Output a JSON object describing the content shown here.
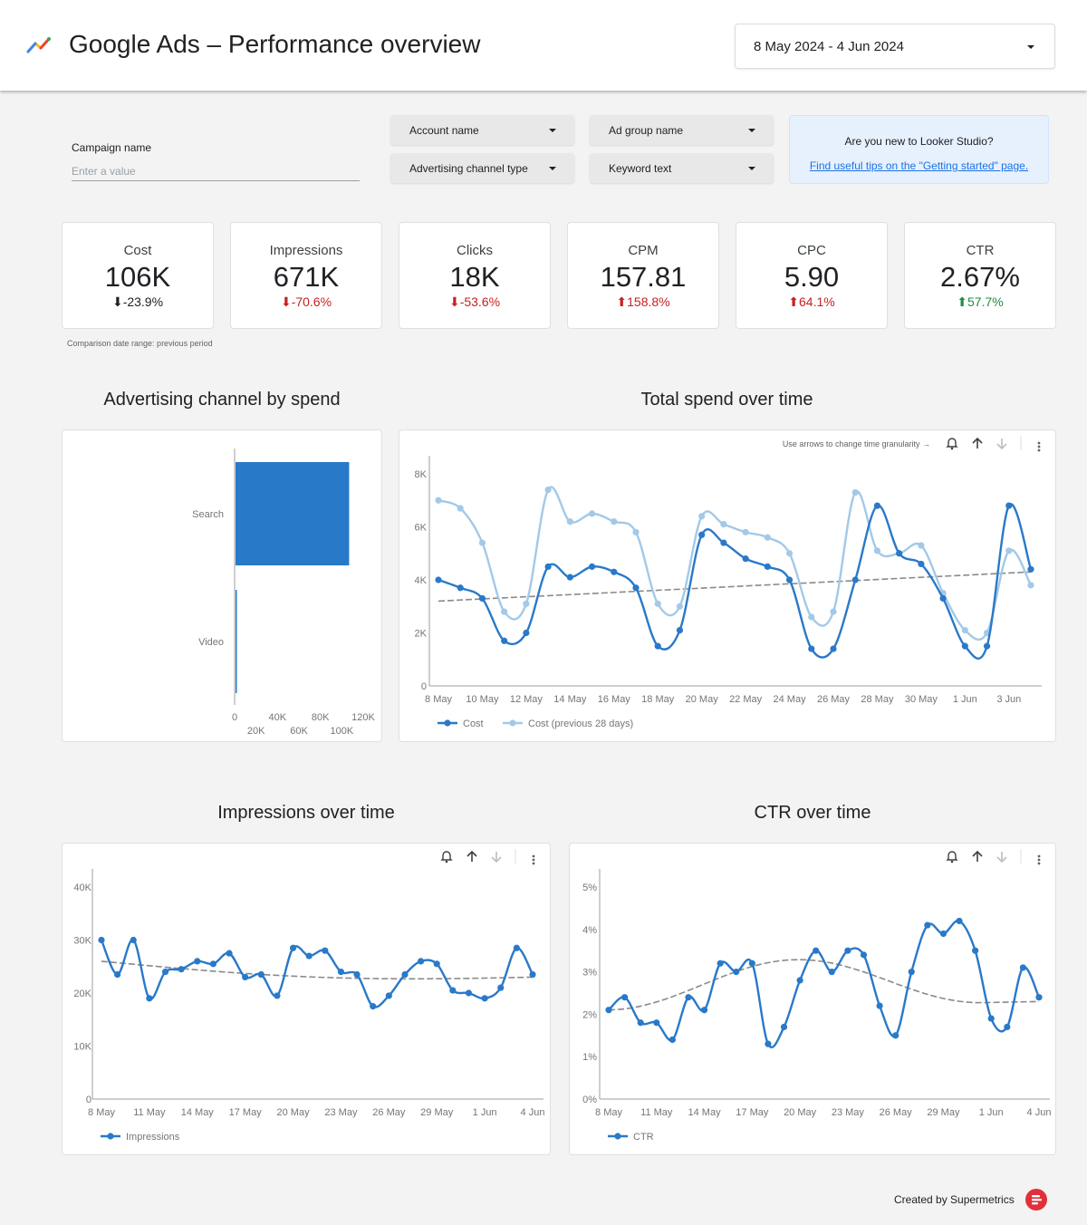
{
  "header": {
    "title": "Google Ads – Performance overview",
    "date_range": "8 May 2024 - 4 Jun 2024",
    "logo_icon": "google-ads-icon"
  },
  "filters": {
    "campaign_label": "Campaign name",
    "campaign_placeholder": "Enter a value",
    "account": "Account name",
    "ad_group": "Ad group name",
    "channel_type": "Advertising channel type",
    "keyword": "Keyword text"
  },
  "tip": {
    "question": "Are you new to Looker Studio?",
    "link": "Find useful tips on the \"Getting started\" page."
  },
  "colors": {
    "primary": "#2979c9",
    "secondary": "#a3c9e8",
    "trend": "#8a8a8a",
    "down": "#c5221f",
    "up": "#1e8e3e"
  },
  "kpis": [
    {
      "label": "Cost",
      "value": "106K",
      "change": "-23.9%",
      "direction": "down",
      "tone": "neutral"
    },
    {
      "label": "Impressions",
      "value": "671K",
      "change": "-70.6%",
      "direction": "down",
      "tone": "red"
    },
    {
      "label": "Clicks",
      "value": "18K",
      "change": "-53.6%",
      "direction": "down",
      "tone": "red"
    },
    {
      "label": "CPM",
      "value": "157.81",
      "change": "158.8%",
      "direction": "up",
      "tone": "red"
    },
    {
      "label": "CPC",
      "value": "5.90",
      "change": "64.1%",
      "direction": "up",
      "tone": "red"
    },
    {
      "label": "CTR",
      "value": "2.67%",
      "change": "57.7%",
      "direction": "up",
      "tone": "green"
    }
  ],
  "comparison_note": "Comparison date range: previous period",
  "chart_controls": {
    "granularity_hint": "Use arrows to change time granularity →",
    "icons": [
      "bell-icon",
      "arrow-up-icon",
      "arrow-down-icon",
      "more-vert-icon"
    ]
  },
  "chart_data": [
    {
      "type": "bar",
      "orientation": "horizontal",
      "title": "Advertising channel by spend",
      "categories": [
        "Search",
        "Video"
      ],
      "values": [
        106000,
        1000
      ],
      "xlim": [
        0,
        120000
      ],
      "ticks_row1": [
        "0",
        "40K",
        "80K",
        "120K"
      ],
      "ticks_row2": [
        "20K",
        "60K",
        "100K"
      ]
    },
    {
      "type": "line",
      "title": "Total spend over time",
      "x": [
        "8 May",
        "9 May",
        "10 May",
        "11 May",
        "12 May",
        "13 May",
        "14 May",
        "15 May",
        "16 May",
        "17 May",
        "18 May",
        "19 May",
        "20 May",
        "21 May",
        "22 May",
        "23 May",
        "24 May",
        "25 May",
        "26 May",
        "27 May",
        "28 May",
        "29 May",
        "30 May",
        "31 May",
        "1 Jun",
        "2 Jun",
        "3 Jun",
        "4 Jun"
      ],
      "x_tick_labels": [
        "8 May",
        "10 May",
        "12 May",
        "14 May",
        "16 May",
        "18 May",
        "20 May",
        "22 May",
        "24 May",
        "26 May",
        "28 May",
        "30 May",
        "1 Jun",
        "3 Jun"
      ],
      "ylim": [
        0,
        8000
      ],
      "y_ticks": [
        0,
        2000,
        4000,
        6000,
        8000
      ],
      "y_tick_labels": [
        "0",
        "2K",
        "4K",
        "6K",
        "8K"
      ],
      "trend": [
        3200,
        4300
      ],
      "series": [
        {
          "name": "Cost",
          "values": [
            4000,
            3700,
            3300,
            1700,
            2000,
            4500,
            4100,
            4500,
            4300,
            3700,
            1500,
            2100,
            5700,
            5400,
            4800,
            4500,
            4000,
            1400,
            1400,
            4000,
            6800,
            5000,
            4600,
            3300,
            1500,
            1500,
            6800,
            4400
          ]
        },
        {
          "name": "Cost (previous 28 days)",
          "values": [
            7000,
            6700,
            5400,
            2800,
            3100,
            7400,
            6200,
            6500,
            6200,
            5800,
            3100,
            3000,
            6400,
            6100,
            5800,
            5600,
            5000,
            2600,
            2800,
            7300,
            5100,
            5000,
            5300,
            3500,
            2100,
            2000,
            5100,
            3800
          ]
        }
      ]
    },
    {
      "type": "line",
      "title": "Impressions over time",
      "x": [
        "8 May",
        "9 May",
        "10 May",
        "11 May",
        "12 May",
        "13 May",
        "14 May",
        "15 May",
        "16 May",
        "17 May",
        "18 May",
        "19 May",
        "20 May",
        "21 May",
        "22 May",
        "23 May",
        "24 May",
        "25 May",
        "26 May",
        "27 May",
        "28 May",
        "29 May",
        "30 May",
        "31 May",
        "1 Jun",
        "2 Jun",
        "3 Jun",
        "4 Jun"
      ],
      "x_tick_labels": [
        "8 May",
        "11 May",
        "14 May",
        "17 May",
        "20 May",
        "23 May",
        "26 May",
        "29 May",
        "1 Jun",
        "4 Jun"
      ],
      "ylim": [
        0,
        40000
      ],
      "y_ticks": [
        0,
        10000,
        20000,
        30000,
        40000
      ],
      "y_tick_labels": [
        "0",
        "10K",
        "20K",
        "30K",
        "40K"
      ],
      "trend": [
        26000,
        23000
      ],
      "series": [
        {
          "name": "Impressions",
          "values": [
            30000,
            23500,
            30000,
            19000,
            24000,
            24500,
            26000,
            25500,
            27500,
            23000,
            23500,
            19500,
            28500,
            27000,
            28000,
            24000,
            23500,
            17500,
            19500,
            23500,
            26000,
            25500,
            20500,
            20000,
            19000,
            21000,
            28500,
            23500
          ]
        }
      ]
    },
    {
      "type": "line",
      "title": "CTR over time",
      "x": [
        "8 May",
        "9 May",
        "10 May",
        "11 May",
        "12 May",
        "13 May",
        "14 May",
        "15 May",
        "16 May",
        "17 May",
        "18 May",
        "19 May",
        "20 May",
        "21 May",
        "22 May",
        "23 May",
        "24 May",
        "25 May",
        "26 May",
        "27 May",
        "28 May",
        "29 May",
        "30 May",
        "31 May",
        "1 Jun",
        "2 Jun",
        "3 Jun",
        "4 Jun"
      ],
      "x_tick_labels": [
        "8 May",
        "11 May",
        "14 May",
        "17 May",
        "20 May",
        "23 May",
        "26 May",
        "29 May",
        "1 Jun",
        "4 Jun"
      ],
      "ylim": [
        0,
        5
      ],
      "y_ticks": [
        0,
        1,
        2,
        3,
        4,
        5
      ],
      "y_tick_labels": [
        "0%",
        "1%",
        "2%",
        "3%",
        "4%",
        "5%"
      ],
      "trend": [
        2.1,
        2.3
      ],
      "series": [
        {
          "name": "CTR",
          "values": [
            2.1,
            2.4,
            1.8,
            1.8,
            1.4,
            2.4,
            2.1,
            3.2,
            3.0,
            3.2,
            1.3,
            1.7,
            2.8,
            3.5,
            3.0,
            3.5,
            3.4,
            2.2,
            1.5,
            3.0,
            4.1,
            3.9,
            4.2,
            3.5,
            1.9,
            1.7,
            3.1,
            2.4
          ]
        }
      ]
    }
  ],
  "footer": {
    "text": "Created by Supermetrics",
    "logo_icon": "supermetrics-logo-icon"
  }
}
